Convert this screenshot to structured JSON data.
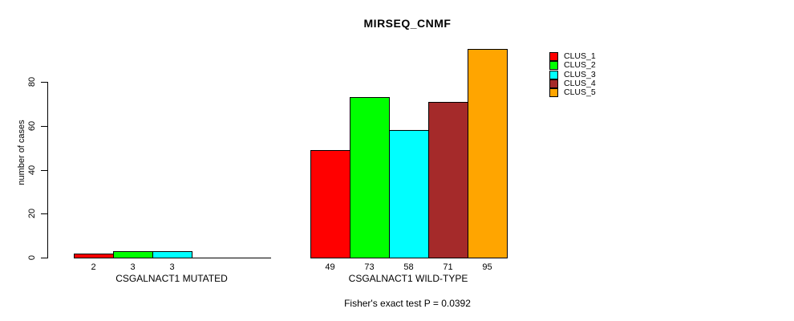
{
  "chart_data": {
    "type": "bar",
    "title": "MIRSEQ_CNMF",
    "ylabel": "number of cases",
    "ylim": [
      0,
      95
    ],
    "yticks": [
      0,
      20,
      40,
      60,
      80
    ],
    "grid": false,
    "legend_position": "right",
    "legend": [
      {
        "label": "CLUS_1",
        "color": "#FF0000"
      },
      {
        "label": "CLUS_2",
        "color": "#00FF00"
      },
      {
        "label": "CLUS_3",
        "color": "#00FFFF"
      },
      {
        "label": "CLUS_4",
        "color": "#A52A2A"
      },
      {
        "label": "CLUS_5",
        "color": "#FFA500"
      }
    ],
    "groups": [
      {
        "label": "CSGALNACT1 MUTATED",
        "values": [
          2,
          3,
          3,
          0,
          0
        ]
      },
      {
        "label": "CSGALNACT1 WILD-TYPE",
        "values": [
          49,
          73,
          58,
          71,
          95
        ]
      }
    ],
    "annotation": "Fisher's exact test P = 0.0392"
  }
}
